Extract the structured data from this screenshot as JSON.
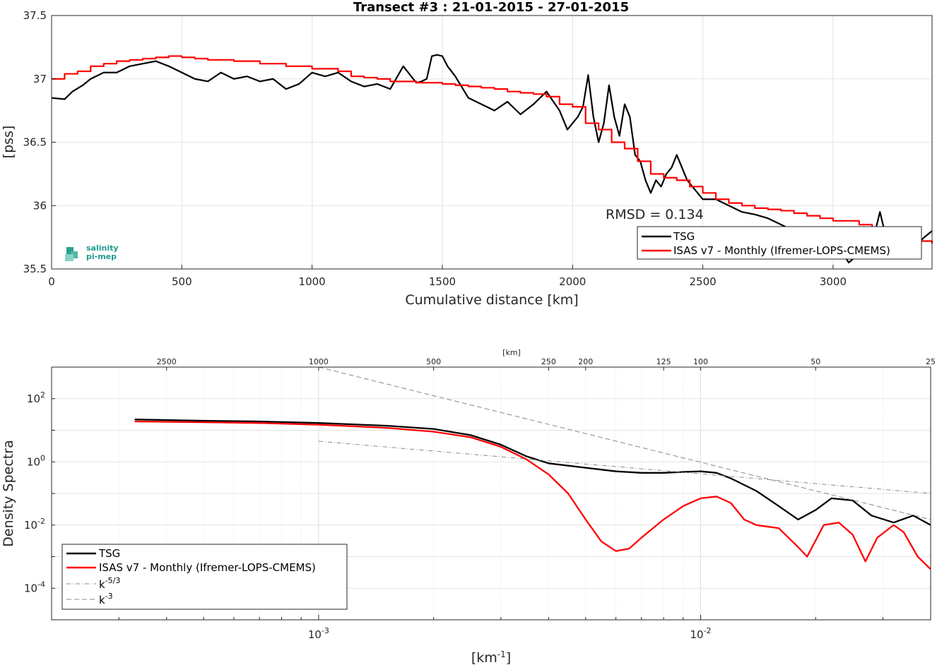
{
  "chart_data": [
    {
      "type": "line",
      "title": "Transect #3 : 21-01-2015 - 27-01-2015",
      "xlabel": "Cumulative distance [km]",
      "ylabel": "[pss]",
      "xlim": [
        0,
        3380
      ],
      "ylim": [
        35.5,
        37.5
      ],
      "xticks": [
        0,
        500,
        1000,
        1500,
        2000,
        2500,
        3000
      ],
      "yticks": [
        35.5,
        36,
        36.5,
        37,
        37.5
      ],
      "grid": true,
      "legend_position": "bottom-right",
      "annotation": "RMSD = 0.134",
      "logo": {
        "line1": "salinity",
        "line2": "pi-mep",
        "colors": [
          "#2b9e8f",
          "#4fb8a8",
          "#87d2c6"
        ]
      },
      "series": [
        {
          "name": "TSG",
          "color": "#000000",
          "x": [
            0,
            50,
            80,
            120,
            150,
            200,
            250,
            300,
            350,
            400,
            450,
            500,
            550,
            600,
            650,
            700,
            750,
            800,
            850,
            900,
            950,
            1000,
            1050,
            1100,
            1150,
            1200,
            1250,
            1300,
            1350,
            1400,
            1420,
            1440,
            1460,
            1480,
            1500,
            1520,
            1550,
            1600,
            1650,
            1700,
            1750,
            1800,
            1850,
            1900,
            1950,
            1980,
            2000,
            2020,
            2040,
            2060,
            2080,
            2100,
            2120,
            2140,
            2160,
            2180,
            2200,
            2220,
            2240,
            2260,
            2280,
            2300,
            2320,
            2340,
            2360,
            2380,
            2400,
            2420,
            2440,
            2460,
            2480,
            2500,
            2550,
            2600,
            2650,
            2700,
            2750,
            2800,
            2850,
            2900,
            2950,
            3000,
            3030,
            3060,
            3100,
            3150,
            3180,
            3200,
            3250,
            3300,
            3350,
            3380
          ],
          "values": [
            36.85,
            36.84,
            36.9,
            36.95,
            37.0,
            37.05,
            37.05,
            37.1,
            37.12,
            37.14,
            37.1,
            37.05,
            37.0,
            36.98,
            37.05,
            37.0,
            37.02,
            36.98,
            37.0,
            36.92,
            36.96,
            37.05,
            37.02,
            37.05,
            36.98,
            36.94,
            36.96,
            36.92,
            37.1,
            36.97,
            36.98,
            37.0,
            37.18,
            37.19,
            37.18,
            37.1,
            37.02,
            36.85,
            36.8,
            36.75,
            36.82,
            36.72,
            36.8,
            36.9,
            36.75,
            36.6,
            36.65,
            36.7,
            36.78,
            37.03,
            36.7,
            36.5,
            36.65,
            36.95,
            36.7,
            36.55,
            36.8,
            36.7,
            36.4,
            36.35,
            36.2,
            36.1,
            36.2,
            36.15,
            36.25,
            36.3,
            36.4,
            36.3,
            36.2,
            36.15,
            36.1,
            36.05,
            36.05,
            36.0,
            35.95,
            35.93,
            35.9,
            35.85,
            35.8,
            35.78,
            35.8,
            35.78,
            35.65,
            35.55,
            35.62,
            35.7,
            35.95,
            35.78,
            35.7,
            35.65,
            35.75,
            35.8
          ]
        },
        {
          "name": "ISAS v7 - Monthly (Ifremer-LOPS-CMEMS)",
          "color": "#ff0000",
          "x": [
            0,
            50,
            100,
            150,
            200,
            250,
            300,
            350,
            400,
            450,
            500,
            550,
            600,
            700,
            800,
            900,
            1000,
            1100,
            1150,
            1200,
            1250,
            1300,
            1400,
            1500,
            1550,
            1600,
            1650,
            1700,
            1750,
            1800,
            1850,
            1900,
            1950,
            2000,
            2050,
            2100,
            2150,
            2200,
            2250,
            2300,
            2350,
            2400,
            2450,
            2500,
            2550,
            2600,
            2650,
            2700,
            2750,
            2800,
            2850,
            2900,
            2950,
            3000,
            3100,
            3150,
            3200,
            3250,
            3300,
            3380
          ],
          "values": [
            37.0,
            37.04,
            37.06,
            37.1,
            37.12,
            37.14,
            37.15,
            37.16,
            37.17,
            37.18,
            37.17,
            37.16,
            37.15,
            37.14,
            37.12,
            37.1,
            37.08,
            37.06,
            37.02,
            37.01,
            37.0,
            36.98,
            36.97,
            36.96,
            36.95,
            36.94,
            36.93,
            36.92,
            36.9,
            36.89,
            36.88,
            36.86,
            36.8,
            36.78,
            36.65,
            36.6,
            36.5,
            36.45,
            36.35,
            36.25,
            36.22,
            36.2,
            36.15,
            36.1,
            36.05,
            36.02,
            36.0,
            35.98,
            35.97,
            35.96,
            35.94,
            35.92,
            35.9,
            35.88,
            35.85,
            35.82,
            35.8,
            35.75,
            35.72,
            35.7
          ]
        }
      ]
    },
    {
      "type": "line",
      "xlabel": "[km-1]",
      "ylabel": "Density Spectra",
      "top_axis_label": "[km]",
      "x_scale": "log",
      "y_scale": "log",
      "xlim": [
        0.0002,
        0.04
      ],
      "ylim": [
        1e-05,
        1000
      ],
      "xticks": [
        0.001,
        0.01
      ],
      "xtick_labels": [
        "10^-3",
        "10^-2"
      ],
      "yticks": [
        0.0001,
        0.01,
        1,
        100
      ],
      "ytick_labels": [
        "10^-4",
        "10^-2",
        "10^0",
        "10^2"
      ],
      "top_ticks_km": [
        2500,
        1000,
        500,
        250,
        200,
        125,
        100,
        50,
        25
      ],
      "grid": true,
      "legend_position": "bottom-left",
      "series": [
        {
          "name": "TSG",
          "color": "#000000",
          "x": [
            0.00033,
            0.0005,
            0.0007,
            0.001,
            0.0015,
            0.002,
            0.0025,
            0.003,
            0.0035,
            0.004,
            0.005,
            0.006,
            0.007,
            0.008,
            0.009,
            0.01,
            0.011,
            0.012,
            0.014,
            0.016,
            0.018,
            0.02,
            0.022,
            0.025,
            0.028,
            0.032,
            0.036,
            0.04
          ],
          "values": [
            22,
            20,
            19,
            17,
            14,
            11,
            7,
            3.5,
            1.5,
            0.9,
            0.65,
            0.5,
            0.45,
            0.45,
            0.48,
            0.5,
            0.45,
            0.3,
            0.12,
            0.04,
            0.015,
            0.03,
            0.07,
            0.06,
            0.02,
            0.012,
            0.02,
            0.01
          ]
        },
        {
          "name": "ISAS v7 - Monthly (Ifremer-LOPS-CMEMS)",
          "color": "#ff0000",
          "x": [
            0.00033,
            0.0005,
            0.0007,
            0.001,
            0.0015,
            0.002,
            0.0025,
            0.003,
            0.0035,
            0.004,
            0.0045,
            0.005,
            0.0055,
            0.006,
            0.0065,
            0.007,
            0.008,
            0.009,
            0.01,
            0.011,
            0.012,
            0.013,
            0.014,
            0.016,
            0.018,
            0.019,
            0.021,
            0.023,
            0.025,
            0.027,
            0.029,
            0.032,
            0.034,
            0.037,
            0.04
          ],
          "values": [
            19,
            18,
            17,
            15,
            12,
            9,
            6,
            3,
            1.2,
            0.4,
            0.1,
            0.015,
            0.003,
            0.0015,
            0.0018,
            0.004,
            0.015,
            0.04,
            0.07,
            0.08,
            0.05,
            0.015,
            0.01,
            0.008,
            0.002,
            0.001,
            0.01,
            0.012,
            0.005,
            0.0007,
            0.004,
            0.01,
            0.006,
            0.001,
            0.0004
          ]
        },
        {
          "name": "k^-5/3",
          "color": "#888888",
          "dash": "dashdot",
          "x": [
            0.001,
            0.04
          ],
          "values": [
            4.5,
            0.1
          ]
        },
        {
          "name": "k^-3",
          "color": "#888888",
          "dash": "dash",
          "x": [
            0.001,
            0.04
          ],
          "values": [
            1000,
            0.015
          ]
        }
      ]
    }
  ]
}
